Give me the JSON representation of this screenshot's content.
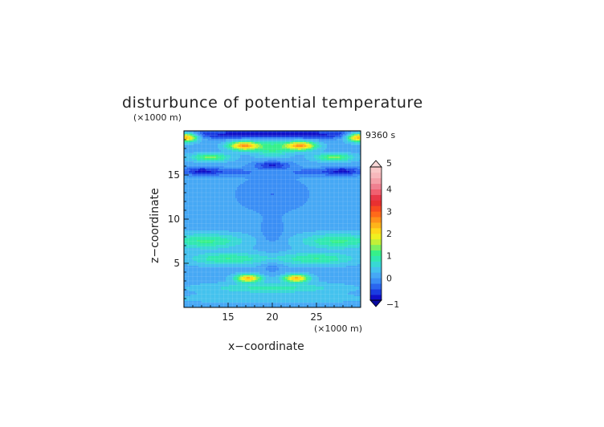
{
  "chart_data": {
    "type": "heatmap",
    "title": "disturbunce of potential temperature",
    "time_label": "9360 s",
    "xlabel": "x−coordinate",
    "ylabel": "z−coordinate",
    "x_unit": "(×1000 m)",
    "y_unit": "(×1000 m)",
    "xlim": [
      10,
      30
    ],
    "ylim": [
      0,
      20
    ],
    "xticks": [
      15,
      20,
      25
    ],
    "yticks": [
      5,
      10,
      15
    ],
    "grid": true,
    "colorbar": {
      "levels": [
        -1,
        -0.75,
        -0.5,
        -0.25,
        0,
        0.25,
        0.5,
        0.75,
        1,
        1.25,
        1.5,
        1.75,
        2,
        2.25,
        2.5,
        2.75,
        3,
        3.25,
        3.5,
        3.75,
        4,
        4.25,
        4.5,
        4.75,
        5
      ],
      "colors": [
        "#1010c8",
        "#1a3ce0",
        "#2a66ef",
        "#3a8ef5",
        "#46a8f5",
        "#44c2ee",
        "#38d8d4",
        "#30e8b0",
        "#36f08a",
        "#7df060",
        "#c2f038",
        "#f0f020",
        "#ffd81a",
        "#ffb41a",
        "#ff901a",
        "#ff6a1a",
        "#f84a20",
        "#e83030",
        "#e83848",
        "#f06070",
        "#f08090",
        "#f5a0a8",
        "#f8b8bc",
        "#fac8c8"
      ],
      "tick_labels": [
        "5",
        "4",
        "3",
        "2",
        "1",
        "0",
        "−1"
      ],
      "tick_values": [
        5,
        4,
        3,
        2,
        1,
        0,
        -1
      ],
      "extend": "both"
    },
    "features": [
      {
        "x": 10.3,
        "z": 19.3,
        "value": 2.6,
        "sx": 0.9,
        "sz": 0.35
      },
      {
        "x": 29.7,
        "z": 19.3,
        "value": 2.6,
        "sx": 0.9,
        "sz": 0.35
      },
      {
        "x": 16.8,
        "z": 18.3,
        "value": 2.4,
        "sx": 1.2,
        "sz": 0.35
      },
      {
        "x": 23.2,
        "z": 18.3,
        "value": 2.4,
        "sx": 1.2,
        "sz": 0.35
      },
      {
        "x": 20,
        "z": 18.0,
        "value": 0.9,
        "sx": 1.4,
        "sz": 0.7
      },
      {
        "x": 13,
        "z": 17.0,
        "value": 1.2,
        "sx": 1.5,
        "sz": 0.3
      },
      {
        "x": 27,
        "z": 17.0,
        "value": 1.2,
        "sx": 1.5,
        "sz": 0.3
      },
      {
        "x": 20,
        "z": 19.6,
        "value": -1.1,
        "sx": 10,
        "sz": 0.35
      },
      {
        "x": 20,
        "z": 16.1,
        "value": -0.9,
        "sx": 1.5,
        "sz": 0.35
      },
      {
        "x": 12,
        "z": 15.4,
        "value": -1.0,
        "sx": 1.6,
        "sz": 0.35
      },
      {
        "x": 28,
        "z": 15.4,
        "value": -1.0,
        "sx": 1.6,
        "sz": 0.35
      },
      {
        "x": 16,
        "z": 15.3,
        "value": -0.5,
        "sx": 1.6,
        "sz": 0.3
      },
      {
        "x": 24,
        "z": 15.3,
        "value": -0.5,
        "sx": 1.6,
        "sz": 0.3
      },
      {
        "x": 20,
        "z": 12.8,
        "value": -0.4,
        "sx": 3,
        "sz": 1.5
      },
      {
        "x": 20,
        "z": 8.5,
        "value": -0.35,
        "sx": 1.0,
        "sz": 1.2
      },
      {
        "x": 12.5,
        "z": 7.5,
        "value": 0.9,
        "sx": 3,
        "sz": 0.6
      },
      {
        "x": 27.5,
        "z": 7.5,
        "value": 0.9,
        "sx": 3,
        "sz": 0.6
      },
      {
        "x": 15,
        "z": 5.5,
        "value": 0.85,
        "sx": 3,
        "sz": 0.5
      },
      {
        "x": 25,
        "z": 5.5,
        "value": 0.85,
        "sx": 3,
        "sz": 0.5
      },
      {
        "x": 17.3,
        "z": 3.3,
        "value": 2.2,
        "sx": 1.0,
        "sz": 0.3
      },
      {
        "x": 22.7,
        "z": 3.3,
        "value": 2.2,
        "sx": 1.0,
        "sz": 0.3
      },
      {
        "x": 20,
        "z": 4.6,
        "value": -0.3,
        "sx": 0.8,
        "sz": 0.5
      },
      {
        "x": 20,
        "z": 2.2,
        "value": 0.7,
        "sx": 5,
        "sz": 0.4
      },
      {
        "x": 20,
        "z": 1.0,
        "value": 0.25,
        "sx": 8,
        "sz": 0.4
      }
    ]
  }
}
